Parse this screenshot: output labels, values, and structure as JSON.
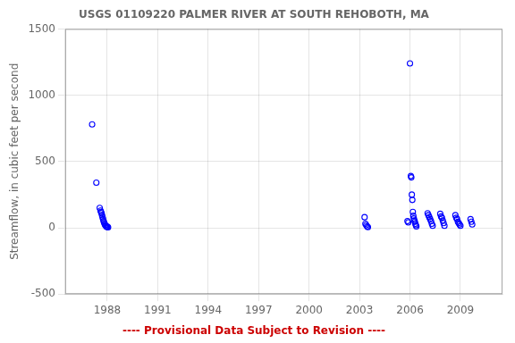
{
  "chart_data": {
    "type": "scatter",
    "title": "USGS 01109220 PALMER RIVER AT SOUTH REHOBOTH, MA",
    "y_label": "Streamflow, in cubic feet per second",
    "annotations": [
      {
        "text": "---- Provisional Data Subject to Revision ----",
        "color": "#cc0000"
      }
    ],
    "x": [
      1987.1,
      1987.35,
      1987.55,
      1987.6,
      1987.63,
      1987.66,
      1987.69,
      1987.72,
      1987.75,
      1987.78,
      1987.81,
      1987.84,
      1987.87,
      1987.9,
      1987.93,
      1987.96,
      1987.99,
      1988.02,
      1988.05,
      2003.3,
      2003.35,
      2003.4,
      2003.45,
      2003.5,
      2005.85,
      2005.9,
      2006.0,
      2006.05,
      2006.08,
      2006.11,
      2006.14,
      2006.17,
      2006.2,
      2006.23,
      2006.26,
      2006.29,
      2006.32,
      2006.35,
      2006.38,
      2007.05,
      2007.1,
      2007.15,
      2007.2,
      2007.25,
      2007.3,
      2007.35,
      2007.8,
      2007.85,
      2007.9,
      2007.95,
      2008.0,
      2008.05,
      2008.7,
      2008.75,
      2008.8,
      2008.85,
      2008.9,
      2008.95,
      2009.0,
      2009.6,
      2009.65,
      2009.7
    ],
    "values": [
      780,
      340,
      150,
      130,
      120,
      110,
      95,
      80,
      65,
      50,
      40,
      30,
      22,
      18,
      12,
      8,
      5,
      8,
      3,
      80,
      30,
      20,
      10,
      5,
      50,
      40,
      1240,
      390,
      380,
      250,
      210,
      120,
      90,
      70,
      55,
      45,
      30,
      20,
      10,
      110,
      95,
      80,
      65,
      50,
      30,
      15,
      105,
      85,
      75,
      55,
      35,
      15,
      95,
      75,
      65,
      45,
      35,
      25,
      15,
      65,
      45,
      25
    ],
    "color": "blue",
    "marker": "circle",
    "xlim": [
      1985.5,
      2011.5
    ],
    "ylim": [
      -500,
      1500
    ],
    "xticks": [
      1988,
      1991,
      1994,
      1997,
      2000,
      2003,
      2006,
      2009
    ],
    "yticks": [
      -500,
      0,
      500,
      1000,
      1500
    ],
    "grid": true
  }
}
